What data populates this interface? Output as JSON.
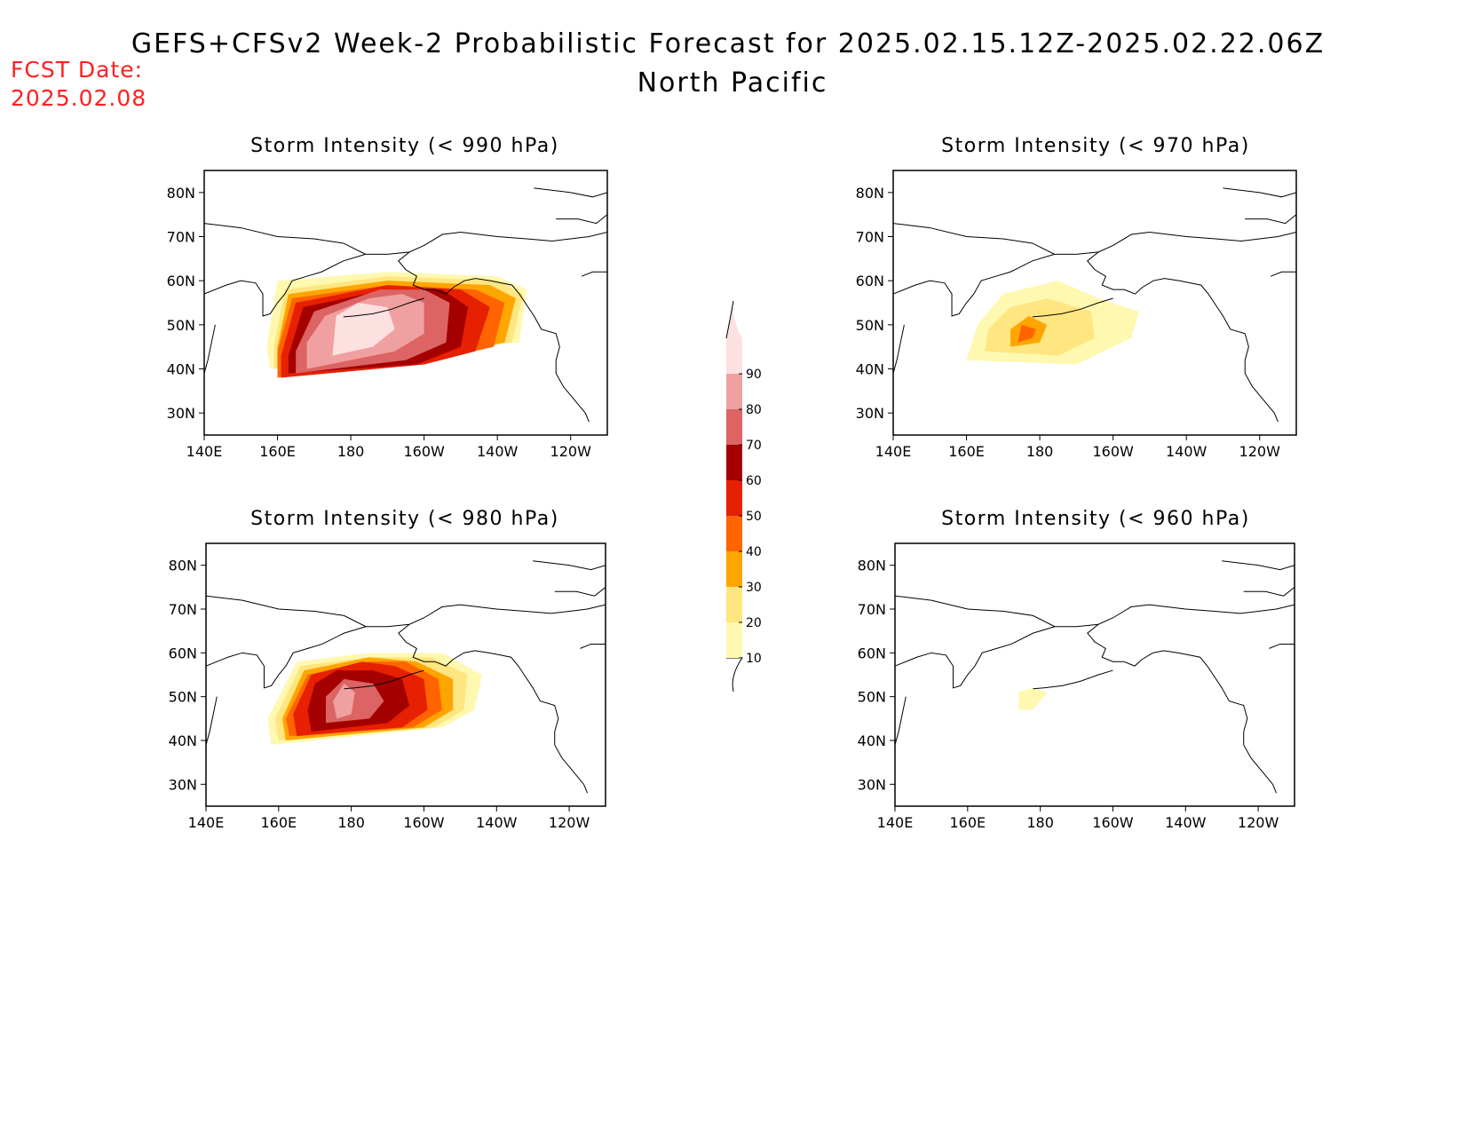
{
  "header": {
    "title": "GEFS+CFSv2 Week-2 Probabilistic Forecast for 2025.02.15.12Z-2025.02.22.06Z",
    "region": "North Pacific",
    "fcst_label": "FCST Date:",
    "fcst_date": "2025.02.08"
  },
  "axes": {
    "lat_ticks": [
      "80N",
      "70N",
      "60N",
      "50N",
      "40N",
      "30N"
    ],
    "lat_values": [
      80,
      70,
      60,
      50,
      40,
      30
    ],
    "lon_ticks": [
      "140E",
      "160E",
      "180",
      "160W",
      "140W",
      "120W"
    ],
    "lon_values": [
      140,
      160,
      180,
      200,
      220,
      240
    ],
    "lon_range": [
      140,
      250
    ],
    "lat_range": [
      25,
      85
    ]
  },
  "colorbar": {
    "levels": [
      "10",
      "20",
      "30",
      "40",
      "50",
      "60",
      "70",
      "80",
      "90"
    ],
    "colors": [
      "#fff8b0",
      "#ffe680",
      "#ffa500",
      "#ff6400",
      "#e62000",
      "#a50000",
      "#dc6464",
      "#f0a0a0",
      "#fde0e0"
    ]
  },
  "panels": [
    {
      "id": "p990",
      "title": "Storm Intensity (< 990 hPa)",
      "regions": [
        {
          "level": 10,
          "pts": [
            [
              158,
              40
            ],
            [
              208,
              45
            ],
            [
              226,
              46
            ],
            [
              228,
              58
            ],
            [
              220,
              61
            ],
            [
              190,
              62
            ],
            [
              160,
              60
            ],
            [
              157,
              45
            ]
          ]
        },
        {
          "level": 20,
          "pts": [
            [
              159,
              40
            ],
            [
              205,
              44
            ],
            [
              224,
              46
            ],
            [
              227,
              57
            ],
            [
              220,
              60
            ],
            [
              190,
              61
            ],
            [
              162,
              58
            ],
            [
              159,
              45
            ]
          ]
        },
        {
          "level": 30,
          "pts": [
            [
              160,
              39
            ],
            [
              205,
              43
            ],
            [
              222,
              46
            ],
            [
              225,
              56
            ],
            [
              218,
              59
            ],
            [
              190,
              60
            ],
            [
              163,
              57
            ],
            [
              160,
              45
            ]
          ]
        },
        {
          "level": 40,
          "pts": [
            [
              160,
              38
            ],
            [
              203,
              42
            ],
            [
              219,
              45
            ],
            [
              222,
              55
            ],
            [
              214,
              58
            ],
            [
              190,
              59
            ],
            [
              164,
              56
            ],
            [
              160,
              44
            ]
          ]
        },
        {
          "level": 50,
          "pts": [
            [
              161,
              38
            ],
            [
              200,
              41
            ],
            [
              214,
              44
            ],
            [
              218,
              54
            ],
            [
              210,
              58
            ],
            [
              190,
              59
            ],
            [
              165,
              55
            ],
            [
              161,
              43
            ]
          ]
        },
        {
          "level": 60,
          "pts": [
            [
              163,
              39
            ],
            [
              198,
              41
            ],
            [
              210,
              45
            ],
            [
              212,
              54
            ],
            [
              205,
              58
            ],
            [
              190,
              58
            ],
            [
              167,
              54
            ],
            [
              163,
              43
            ]
          ]
        },
        {
          "level": 70,
          "pts": [
            [
              165,
              39
            ],
            [
              195,
              42
            ],
            [
              206,
              46
            ],
            [
              207,
              55
            ],
            [
              200,
              58
            ],
            [
              188,
              58
            ],
            [
              170,
              53
            ],
            [
              165,
              44
            ]
          ]
        },
        {
          "level": 80,
          "pts": [
            [
              168,
              40
            ],
            [
              192,
              44
            ],
            [
              200,
              48
            ],
            [
              200,
              55
            ],
            [
              194,
              57
            ],
            [
              185,
              56
            ],
            [
              173,
              52
            ],
            [
              168,
              46
            ]
          ]
        },
        {
          "level": 90,
          "pts": [
            [
              175,
              43
            ],
            [
              186,
              45
            ],
            [
              192,
              49
            ],
            [
              190,
              54
            ],
            [
              182,
              55
            ],
            [
              176,
              52
            ]
          ]
        }
      ]
    },
    {
      "id": "p970",
      "title": "Storm Intensity (< 970 hPa)",
      "regions": [
        {
          "level": 10,
          "pts": [
            [
              160,
              42
            ],
            [
              190,
              41
            ],
            [
              205,
              47
            ],
            [
              207,
              53
            ],
            [
              196,
              56
            ],
            [
              185,
              60
            ],
            [
              170,
              57
            ],
            [
              163,
              50
            ]
          ]
        },
        {
          "level": 20,
          "pts": [
            [
              165,
              44
            ],
            [
              185,
              43
            ],
            [
              195,
              47
            ],
            [
              194,
              53
            ],
            [
              182,
              56
            ],
            [
              172,
              54
            ],
            [
              166,
              49
            ]
          ]
        },
        {
          "level": 30,
          "pts": [
            [
              172,
              45
            ],
            [
              180,
              46
            ],
            [
              182,
              50
            ],
            [
              177,
              52
            ],
            [
              172,
              49
            ]
          ]
        },
        {
          "level": 40,
          "pts": [
            [
              174,
              46
            ],
            [
              178,
              47
            ],
            [
              179,
              49
            ],
            [
              175,
              50
            ]
          ]
        }
      ]
    },
    {
      "id": "p980",
      "title": "Storm Intensity (< 980 hPa)",
      "regions": [
        {
          "level": 10,
          "pts": [
            [
              158,
              39
            ],
            [
              205,
              43
            ],
            [
              214,
              47
            ],
            [
              216,
              55
            ],
            [
              205,
              60
            ],
            [
              185,
              60
            ],
            [
              165,
              58
            ],
            [
              157,
              45
            ]
          ]
        },
        {
          "level": 20,
          "pts": [
            [
              160,
              40
            ],
            [
              203,
              43
            ],
            [
              211,
              47
            ],
            [
              212,
              55
            ],
            [
              202,
              59
            ],
            [
              185,
              59
            ],
            [
              166,
              57
            ],
            [
              159,
              45
            ]
          ]
        },
        {
          "level": 30,
          "pts": [
            [
              162,
              40
            ],
            [
              200,
              43
            ],
            [
              208,
              47
            ],
            [
              208,
              54
            ],
            [
              198,
              58
            ],
            [
              185,
              59
            ],
            [
              167,
              56
            ],
            [
              161,
              45
            ]
          ]
        },
        {
          "level": 40,
          "pts": [
            [
              163,
              41
            ],
            [
              197,
              43
            ],
            [
              205,
              47
            ],
            [
              204,
              54
            ],
            [
              195,
              58
            ],
            [
              185,
              58
            ],
            [
              168,
              55
            ],
            [
              162,
              45
            ]
          ]
        },
        {
          "level": 50,
          "pts": [
            [
              165,
              41
            ],
            [
              194,
              43
            ],
            [
              201,
              47
            ],
            [
              200,
              54
            ],
            [
              192,
              57
            ],
            [
              183,
              58
            ],
            [
              169,
              55
            ],
            [
              164,
              46
            ]
          ]
        },
        {
          "level": 60,
          "pts": [
            [
              169,
              42
            ],
            [
              190,
              44
            ],
            [
              196,
              48
            ],
            [
              194,
              54
            ],
            [
              186,
              56
            ],
            [
              176,
              56
            ],
            [
              170,
              53
            ],
            [
              168,
              47
            ]
          ]
        },
        {
          "level": 70,
          "pts": [
            [
              173,
              44
            ],
            [
              185,
              45
            ],
            [
              189,
              49
            ],
            [
              186,
              53
            ],
            [
              178,
              54
            ],
            [
              173,
              50
            ]
          ]
        },
        {
          "level": 80,
          "pts": [
            [
              176,
              45
            ],
            [
              180,
              46
            ],
            [
              181,
              51
            ],
            [
              178,
              53
            ],
            [
              175,
              49
            ]
          ]
        }
      ]
    },
    {
      "id": "p960",
      "title": "Storm Intensity (< 960 hPa)",
      "regions": [
        {
          "level": 10,
          "pts": [
            [
              174,
              47
            ],
            [
              178,
              47
            ],
            [
              182,
              51
            ],
            [
              178,
              52
            ],
            [
              174,
              51
            ]
          ]
        }
      ]
    }
  ]
}
